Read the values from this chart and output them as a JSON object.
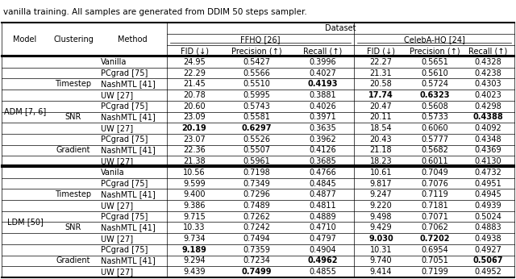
{
  "caption": "vanilla training. All samples are generated from DDIM 50 steps sampler.",
  "rows": [
    [
      "ADM [7, 6]",
      "",
      "Vanilla",
      "24.95",
      "0.5427",
      "0.3996",
      "22.27",
      "0.5651",
      "0.4328"
    ],
    [
      "",
      "Timestep",
      "PCgrad [75]",
      "22.29",
      "0.5566",
      "0.4027",
      "21.31",
      "0.5610",
      "0.4238"
    ],
    [
      "",
      "",
      "NashMTL [41]",
      "21.45",
      "0.5510",
      "0.4193",
      "20.58",
      "0.5724",
      "0.4303"
    ],
    [
      "",
      "",
      "UW [27]",
      "20.78",
      "0.5995",
      "0.3881",
      "17.74",
      "0.6323",
      "0.4023"
    ],
    [
      "",
      "SNR",
      "PCgrad [75]",
      "20.60",
      "0.5743",
      "0.4026",
      "20.47",
      "0.5608",
      "0.4298"
    ],
    [
      "",
      "",
      "NashMTL [41]",
      "23.09",
      "0.5581",
      "0.3971",
      "20.11",
      "0.5733",
      "0.4388"
    ],
    [
      "",
      "",
      "UW [27]",
      "20.19",
      "0.6297",
      "0.3635",
      "18.54",
      "0.6060",
      "0.4092"
    ],
    [
      "",
      "Gradient",
      "PCgrad [75]",
      "23.07",
      "0.5526",
      "0.3962",
      "20.43",
      "0.5777",
      "0.4348"
    ],
    [
      "",
      "",
      "NashMTL [41]",
      "22.36",
      "0.5507",
      "0.4126",
      "21.18",
      "0.5682",
      "0.4369"
    ],
    [
      "",
      "",
      "UW [27]",
      "21.38",
      "0.5961",
      "0.3685",
      "18.23",
      "0.6011",
      "0.4130"
    ],
    [
      "LDM [50]",
      "",
      "Vanila",
      "10.56",
      "0.7198",
      "0.4766",
      "10.61",
      "0.7049",
      "0.4732"
    ],
    [
      "",
      "Timestep",
      "PCgrad [75]",
      "9.599",
      "0.7349",
      "0.4845",
      "9.817",
      "0.7076",
      "0.4951"
    ],
    [
      "",
      "",
      "NashMTL [41]",
      "9.400",
      "0.7296",
      "0.4877",
      "9.247",
      "0.7119",
      "0.4945"
    ],
    [
      "",
      "",
      "UW [27]",
      "9.386",
      "0.7489",
      "0.4811",
      "9.220",
      "0.7181",
      "0.4939"
    ],
    [
      "",
      "SNR",
      "PCgrad [75]",
      "9.715",
      "0.7262",
      "0.4889",
      "9.498",
      "0.7071",
      "0.5024"
    ],
    [
      "",
      "",
      "NashMTL [41]",
      "10.33",
      "0.7242",
      "0.4710",
      "9.429",
      "0.7062",
      "0.4883"
    ],
    [
      "",
      "",
      "UW [27]",
      "9.734",
      "0.7494",
      "0.4797",
      "9.030",
      "0.7202",
      "0.4938"
    ],
    [
      "",
      "Gradient",
      "PCgrad [75]",
      "9.189",
      "0.7359",
      "0.4904",
      "10.31",
      "0.6954",
      "0.4927"
    ],
    [
      "",
      "",
      "NashMTL [41]",
      "9.294",
      "0.7234",
      "0.4962",
      "9.740",
      "0.7051",
      "0.5067"
    ],
    [
      "",
      "",
      "UW [27]",
      "9.439",
      "0.7499",
      "0.4855",
      "9.414",
      "0.7199",
      "0.4952"
    ]
  ],
  "bold_map": {
    "2,5": true,
    "3,6": true,
    "3,7": true,
    "5,8": true,
    "6,3": true,
    "6,4": true,
    "16,6": true,
    "16,7": true,
    "17,3": true,
    "18,5": true,
    "18,8": true,
    "19,4": true
  },
  "bg_color": "white",
  "text_color": "black",
  "font_size": 7.0
}
